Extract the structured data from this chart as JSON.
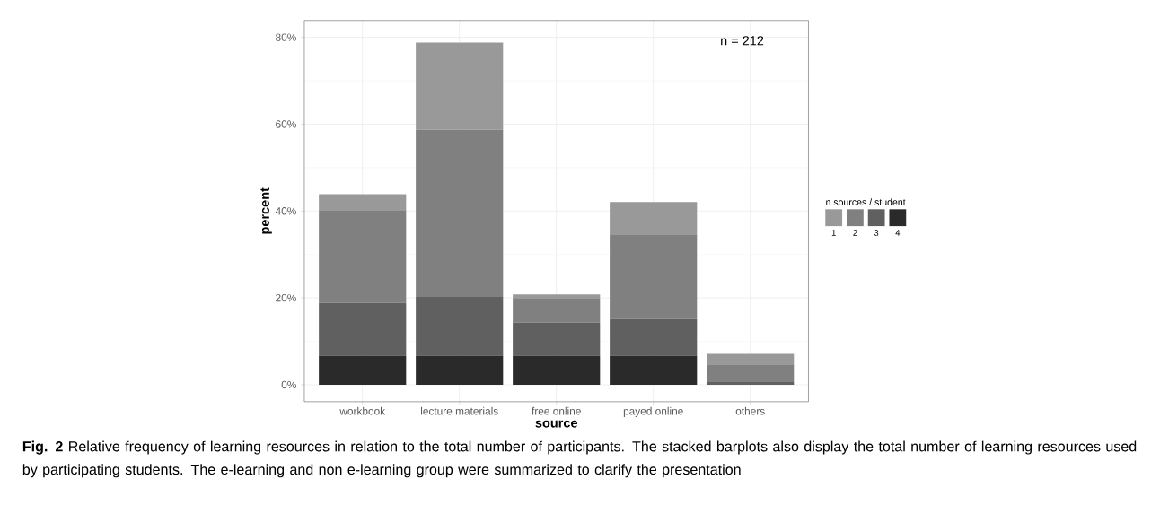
{
  "chart_data": {
    "type": "bar",
    "stacked": true,
    "xlabel": "source",
    "ylabel": "percent",
    "legend_title": "n sources / student",
    "legend": "right",
    "grid": true,
    "categories": [
      "workbook",
      "lecture materials",
      "free online",
      "payed online",
      "others"
    ],
    "series": [
      {
        "name": "4",
        "color": "#2a2a2a",
        "values": [
          6.7,
          6.7,
          6.7,
          6.7,
          0
        ]
      },
      {
        "name": "3",
        "color": "#606060",
        "values": [
          12.2,
          13.7,
          7.6,
          8.5,
          0.6
        ]
      },
      {
        "name": "2",
        "color": "#808080",
        "values": [
          21.3,
          38.3,
          5.5,
          19.3,
          4.1
        ]
      },
      {
        "name": "1",
        "color": "#999999",
        "values": [
          3.7,
          20.1,
          1.0,
          7.6,
          2.4
        ]
      }
    ],
    "ylim": [
      -3.9,
      83.9
    ],
    "yticks": [
      {
        "value": 0,
        "label": "0%"
      },
      {
        "value": 20,
        "label": "20%"
      },
      {
        "value": 40,
        "label": "40%"
      },
      {
        "value": 60,
        "label": "60%"
      },
      {
        "value": 80,
        "label": "80%"
      }
    ],
    "annotations": [
      "n = 212",
      "**Fig. 2** Relative frequency of learning resources in relation to the total number of participants. The stacked barplots also display the total number of learning resources used by participating students. The e-learning and non e-learning group were summarized to clarify the presentation"
    ]
  }
}
